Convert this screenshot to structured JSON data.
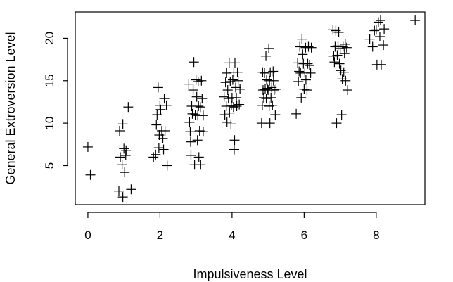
{
  "chart_data": {
    "type": "scatter",
    "marker": "plus",
    "title": "",
    "xlabel": "Impulsiveness Level",
    "ylabel": "General Extroversion Level",
    "xlim": [
      -0.35,
      9.35
    ],
    "ylim": [
      0.4,
      23.1
    ],
    "xticks": [
      0,
      2,
      4,
      6,
      8
    ],
    "yticks": [
      5,
      10,
      15,
      20
    ],
    "grid": false,
    "legend": "none",
    "points": [
      [
        0.0,
        7.2
      ],
      [
        0.07,
        3.9
      ],
      [
        0.86,
        2.0
      ],
      [
        0.9,
        6.0
      ],
      [
        0.88,
        9.1
      ],
      [
        0.95,
        5.1
      ],
      [
        0.97,
        9.9
      ],
      [
        0.97,
        1.3
      ],
      [
        1.0,
        7.0
      ],
      [
        1.02,
        4.2
      ],
      [
        1.05,
        6.2
      ],
      [
        1.06,
        6.8
      ],
      [
        1.12,
        11.9
      ],
      [
        1.2,
        2.2
      ],
      [
        1.82,
        6.0
      ],
      [
        1.88,
        6.3
      ],
      [
        1.9,
        9.8
      ],
      [
        1.92,
        11.0
      ],
      [
        1.95,
        14.2
      ],
      [
        1.97,
        7.1
      ],
      [
        1.98,
        8.6
      ],
      [
        2.0,
        12.1
      ],
      [
        2.02,
        11.6
      ],
      [
        2.05,
        9.1
      ],
      [
        2.08,
        8.2
      ],
      [
        2.1,
        6.9
      ],
      [
        2.12,
        12.9
      ],
      [
        2.14,
        9.1
      ],
      [
        2.18,
        12.1
      ],
      [
        2.2,
        5.0
      ],
      [
        2.8,
        14.6
      ],
      [
        2.82,
        10.1
      ],
      [
        2.84,
        9.0
      ],
      [
        2.85,
        7.8
      ],
      [
        2.86,
        6.2
      ],
      [
        2.88,
        12.0
      ],
      [
        2.9,
        11.1
      ],
      [
        2.92,
        13.9
      ],
      [
        2.94,
        17.2
      ],
      [
        2.96,
        5.1
      ],
      [
        2.98,
        11.0
      ],
      [
        3.0,
        15.1
      ],
      [
        3.02,
        13.1
      ],
      [
        3.04,
        8.0
      ],
      [
        3.05,
        10.9
      ],
      [
        3.06,
        14.9
      ],
      [
        3.07,
        12.0
      ],
      [
        3.08,
        6.0
      ],
      [
        3.1,
        9.1
      ],
      [
        3.12,
        11.9
      ],
      [
        3.13,
        5.1
      ],
      [
        3.15,
        15.0
      ],
      [
        3.17,
        12.9
      ],
      [
        3.2,
        10.9
      ],
      [
        3.2,
        9.0
      ],
      [
        3.78,
        13.1
      ],
      [
        3.8,
        11.0
      ],
      [
        3.82,
        14.8
      ],
      [
        3.84,
        12.0
      ],
      [
        3.85,
        15.9
      ],
      [
        3.86,
        10.1
      ],
      [
        3.88,
        13.9
      ],
      [
        3.9,
        12.9
      ],
      [
        3.92,
        17.1
      ],
      [
        3.93,
        11.2
      ],
      [
        3.95,
        14.9
      ],
      [
        3.97,
        9.9
      ],
      [
        3.98,
        12.1
      ],
      [
        4.0,
        13.0
      ],
      [
        4.02,
        15.1
      ],
      [
        4.04,
        11.9
      ],
      [
        4.05,
        16.0
      ],
      [
        4.06,
        6.9
      ],
      [
        4.07,
        8.0
      ],
      [
        4.08,
        17.1
      ],
      [
        4.1,
        14.2
      ],
      [
        4.12,
        13.0
      ],
      [
        4.13,
        12.0
      ],
      [
        4.15,
        16.0
      ],
      [
        4.17,
        15.0
      ],
      [
        4.2,
        12.2
      ],
      [
        4.22,
        14.0
      ],
      [
        4.82,
        10.0
      ],
      [
        4.84,
        12.1
      ],
      [
        4.85,
        16.0
      ],
      [
        4.86,
        13.9
      ],
      [
        4.88,
        13.0
      ],
      [
        4.9,
        15.9
      ],
      [
        4.92,
        14.0
      ],
      [
        4.94,
        17.9
      ],
      [
        4.95,
        12.9
      ],
      [
        4.96,
        15.1
      ],
      [
        4.98,
        14.1
      ],
      [
        5.0,
        13.9
      ],
      [
        5.02,
        18.8
      ],
      [
        5.03,
        12.0
      ],
      [
        5.04,
        15.0
      ],
      [
        5.05,
        10.0
      ],
      [
        5.06,
        16.0
      ],
      [
        5.08,
        13.0
      ],
      [
        5.1,
        14.2
      ],
      [
        5.12,
        12.1
      ],
      [
        5.14,
        16.1
      ],
      [
        5.15,
        15.0
      ],
      [
        5.17,
        13.9
      ],
      [
        5.2,
        11.0
      ],
      [
        5.22,
        14.0
      ],
      [
        5.78,
        11.1
      ],
      [
        5.82,
        17.1
      ],
      [
        5.84,
        14.9
      ],
      [
        5.86,
        16.1
      ],
      [
        5.88,
        19.0
      ],
      [
        5.9,
        15.9
      ],
      [
        5.92,
        13.0
      ],
      [
        5.94,
        19.9
      ],
      [
        5.96,
        18.1
      ],
      [
        5.98,
        17.0
      ],
      [
        6.0,
        14.0
      ],
      [
        6.02,
        16.0
      ],
      [
        6.04,
        18.9
      ],
      [
        6.05,
        15.1
      ],
      [
        6.08,
        13.9
      ],
      [
        6.1,
        17.0
      ],
      [
        6.12,
        19.0
      ],
      [
        6.15,
        16.8
      ],
      [
        6.18,
        15.9
      ],
      [
        6.2,
        18.9
      ],
      [
        6.8,
        21.0
      ],
      [
        6.82,
        17.9
      ],
      [
        6.84,
        17.2
      ],
      [
        6.86,
        19.0
      ],
      [
        6.88,
        20.9
      ],
      [
        6.9,
        10.0
      ],
      [
        6.92,
        18.0
      ],
      [
        6.94,
        19.1
      ],
      [
        6.96,
        20.7
      ],
      [
        6.98,
        17.0
      ],
      [
        7.0,
        18.8
      ],
      [
        7.02,
        16.2
      ],
      [
        7.04,
        11.0
      ],
      [
        7.06,
        15.2
      ],
      [
        7.08,
        19.0
      ],
      [
        7.1,
        16.0
      ],
      [
        7.12,
        18.2
      ],
      [
        7.14,
        19.3
      ],
      [
        7.15,
        15.0
      ],
      [
        7.18,
        18.9
      ],
      [
        7.2,
        13.9
      ],
      [
        7.82,
        19.9
      ],
      [
        7.9,
        19.0
      ],
      [
        7.95,
        20.9
      ],
      [
        8.0,
        21.0
      ],
      [
        8.02,
        16.9
      ],
      [
        8.06,
        21.9
      ],
      [
        8.1,
        20.2
      ],
      [
        8.12,
        22.1
      ],
      [
        8.14,
        16.9
      ],
      [
        8.2,
        19.2
      ],
      [
        8.22,
        21.1
      ],
      [
        9.08,
        22.1
      ]
    ]
  }
}
